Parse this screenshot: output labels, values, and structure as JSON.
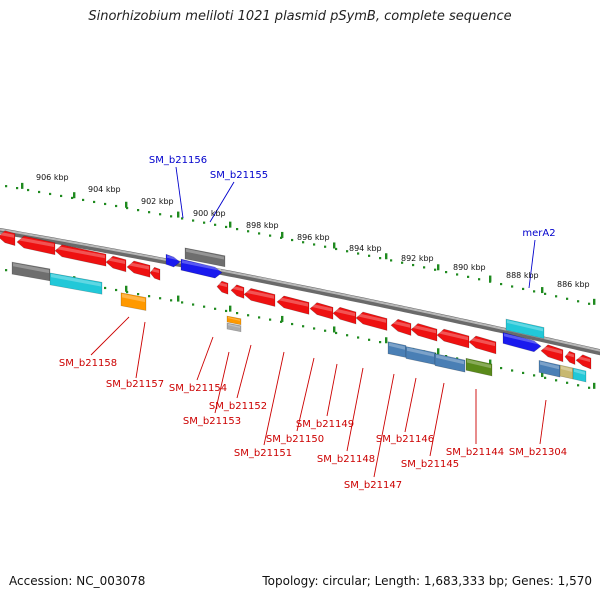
{
  "title": "Sinorhizobium meliloti 1021 plasmid pSymB, complete sequence",
  "footer": {
    "accession": "Accession: NC_003078",
    "summary": "Topology: circular; Length: 1,683,333 bp; Genes: 1,570"
  },
  "colors": {
    "backbone": "#8c8c8c",
    "ruler": "#1f8a1f",
    "forward_label": "#0000cc",
    "reverse_label": "#cc0000",
    "gene_red": "#ee1111",
    "gene_blue": "#1a1aee",
    "gene_gray": "#6e6e6e",
    "gene_cyan": "#22c8d8",
    "gene_orange": "#ff9900",
    "gene_steel": "#4a7fb5",
    "gene_olive": "#5a8a1a",
    "gene_tan": "#c8b870"
  },
  "ruler_labels": [
    "906 kbp",
    "904 kbp",
    "902 kbp",
    "900 kbp",
    "898 kbp",
    "896 kbp",
    "894 kbp",
    "892 kbp",
    "890 kbp",
    "888 kbp",
    "886 kbp"
  ],
  "forward_labels": [
    "SM_b21156",
    "SM_b21155",
    "merA2"
  ],
  "reverse_labels": [
    "SM_b21158",
    "SM_b21157",
    "SM_b21154",
    "SM_b21152",
    "SM_b21153",
    "SM_b21151",
    "SM_b21150",
    "SM_b21149",
    "SM_b21148",
    "SM_b21147",
    "SM_b21146",
    "SM_b21145",
    "SM_b21144",
    "SM_b21304"
  ]
}
